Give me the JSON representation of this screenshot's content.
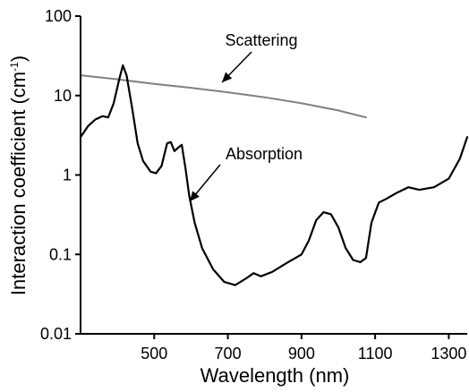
{
  "chart_data": {
    "type": "line",
    "title": "",
    "xlabel": "Wavelength (nm)",
    "ylabel": {
      "main": "Interaction coefficient (cm",
      "sup": "-1",
      "close": ")"
    },
    "x_scale": "linear",
    "y_scale": "log",
    "xlim": [
      300,
      1350
    ],
    "ylim": [
      0.01,
      100
    ],
    "x_ticks": [
      500,
      700,
      900,
      1100,
      1300
    ],
    "x_tick_labels": [
      "500",
      "700",
      "900",
      "1100",
      "1300"
    ],
    "y_ticks": [
      0.01,
      0.1,
      1,
      10,
      100
    ],
    "y_tick_labels": [
      "0.01",
      "0.1",
      "1",
      "10",
      "100"
    ],
    "grid": false,
    "annotations": [
      {
        "text": "Scattering",
        "series": "Scattering"
      },
      {
        "text": "Absorption",
        "series": "Absorption"
      }
    ],
    "series": [
      {
        "name": "Scattering",
        "color": "#808080",
        "x": [
          300,
          400,
          500,
          600,
          700,
          800,
          900,
          1000,
          1075
        ],
        "y": [
          18,
          16,
          14,
          12.5,
          11,
          9.5,
          8,
          6.5,
          5.3
        ]
      },
      {
        "name": "Absorption",
        "color": "#000000",
        "x": [
          300,
          320,
          340,
          360,
          375,
          390,
          405,
          415,
          425,
          440,
          455,
          470,
          490,
          505,
          520,
          535,
          545,
          555,
          565,
          575,
          585,
          595,
          610,
          630,
          660,
          690,
          720,
          750,
          770,
          790,
          820,
          860,
          900,
          920,
          940,
          960,
          980,
          1000,
          1020,
          1040,
          1060,
          1075,
          1090,
          1110,
          1130,
          1160,
          1190,
          1220,
          1260,
          1300,
          1330,
          1350
        ],
        "y": [
          3.0,
          4.1,
          5.0,
          5.5,
          5.3,
          8.0,
          16,
          24,
          18,
          7.0,
          2.5,
          1.5,
          1.1,
          1.05,
          1.3,
          2.5,
          2.6,
          2.0,
          2.2,
          2.4,
          1.2,
          0.55,
          0.25,
          0.12,
          0.065,
          0.045,
          0.041,
          0.05,
          0.058,
          0.053,
          0.06,
          0.078,
          0.1,
          0.15,
          0.27,
          0.34,
          0.32,
          0.22,
          0.12,
          0.085,
          0.08,
          0.09,
          0.25,
          0.45,
          0.5,
          0.6,
          0.7,
          0.65,
          0.7,
          0.9,
          1.6,
          3.0
        ]
      }
    ]
  }
}
